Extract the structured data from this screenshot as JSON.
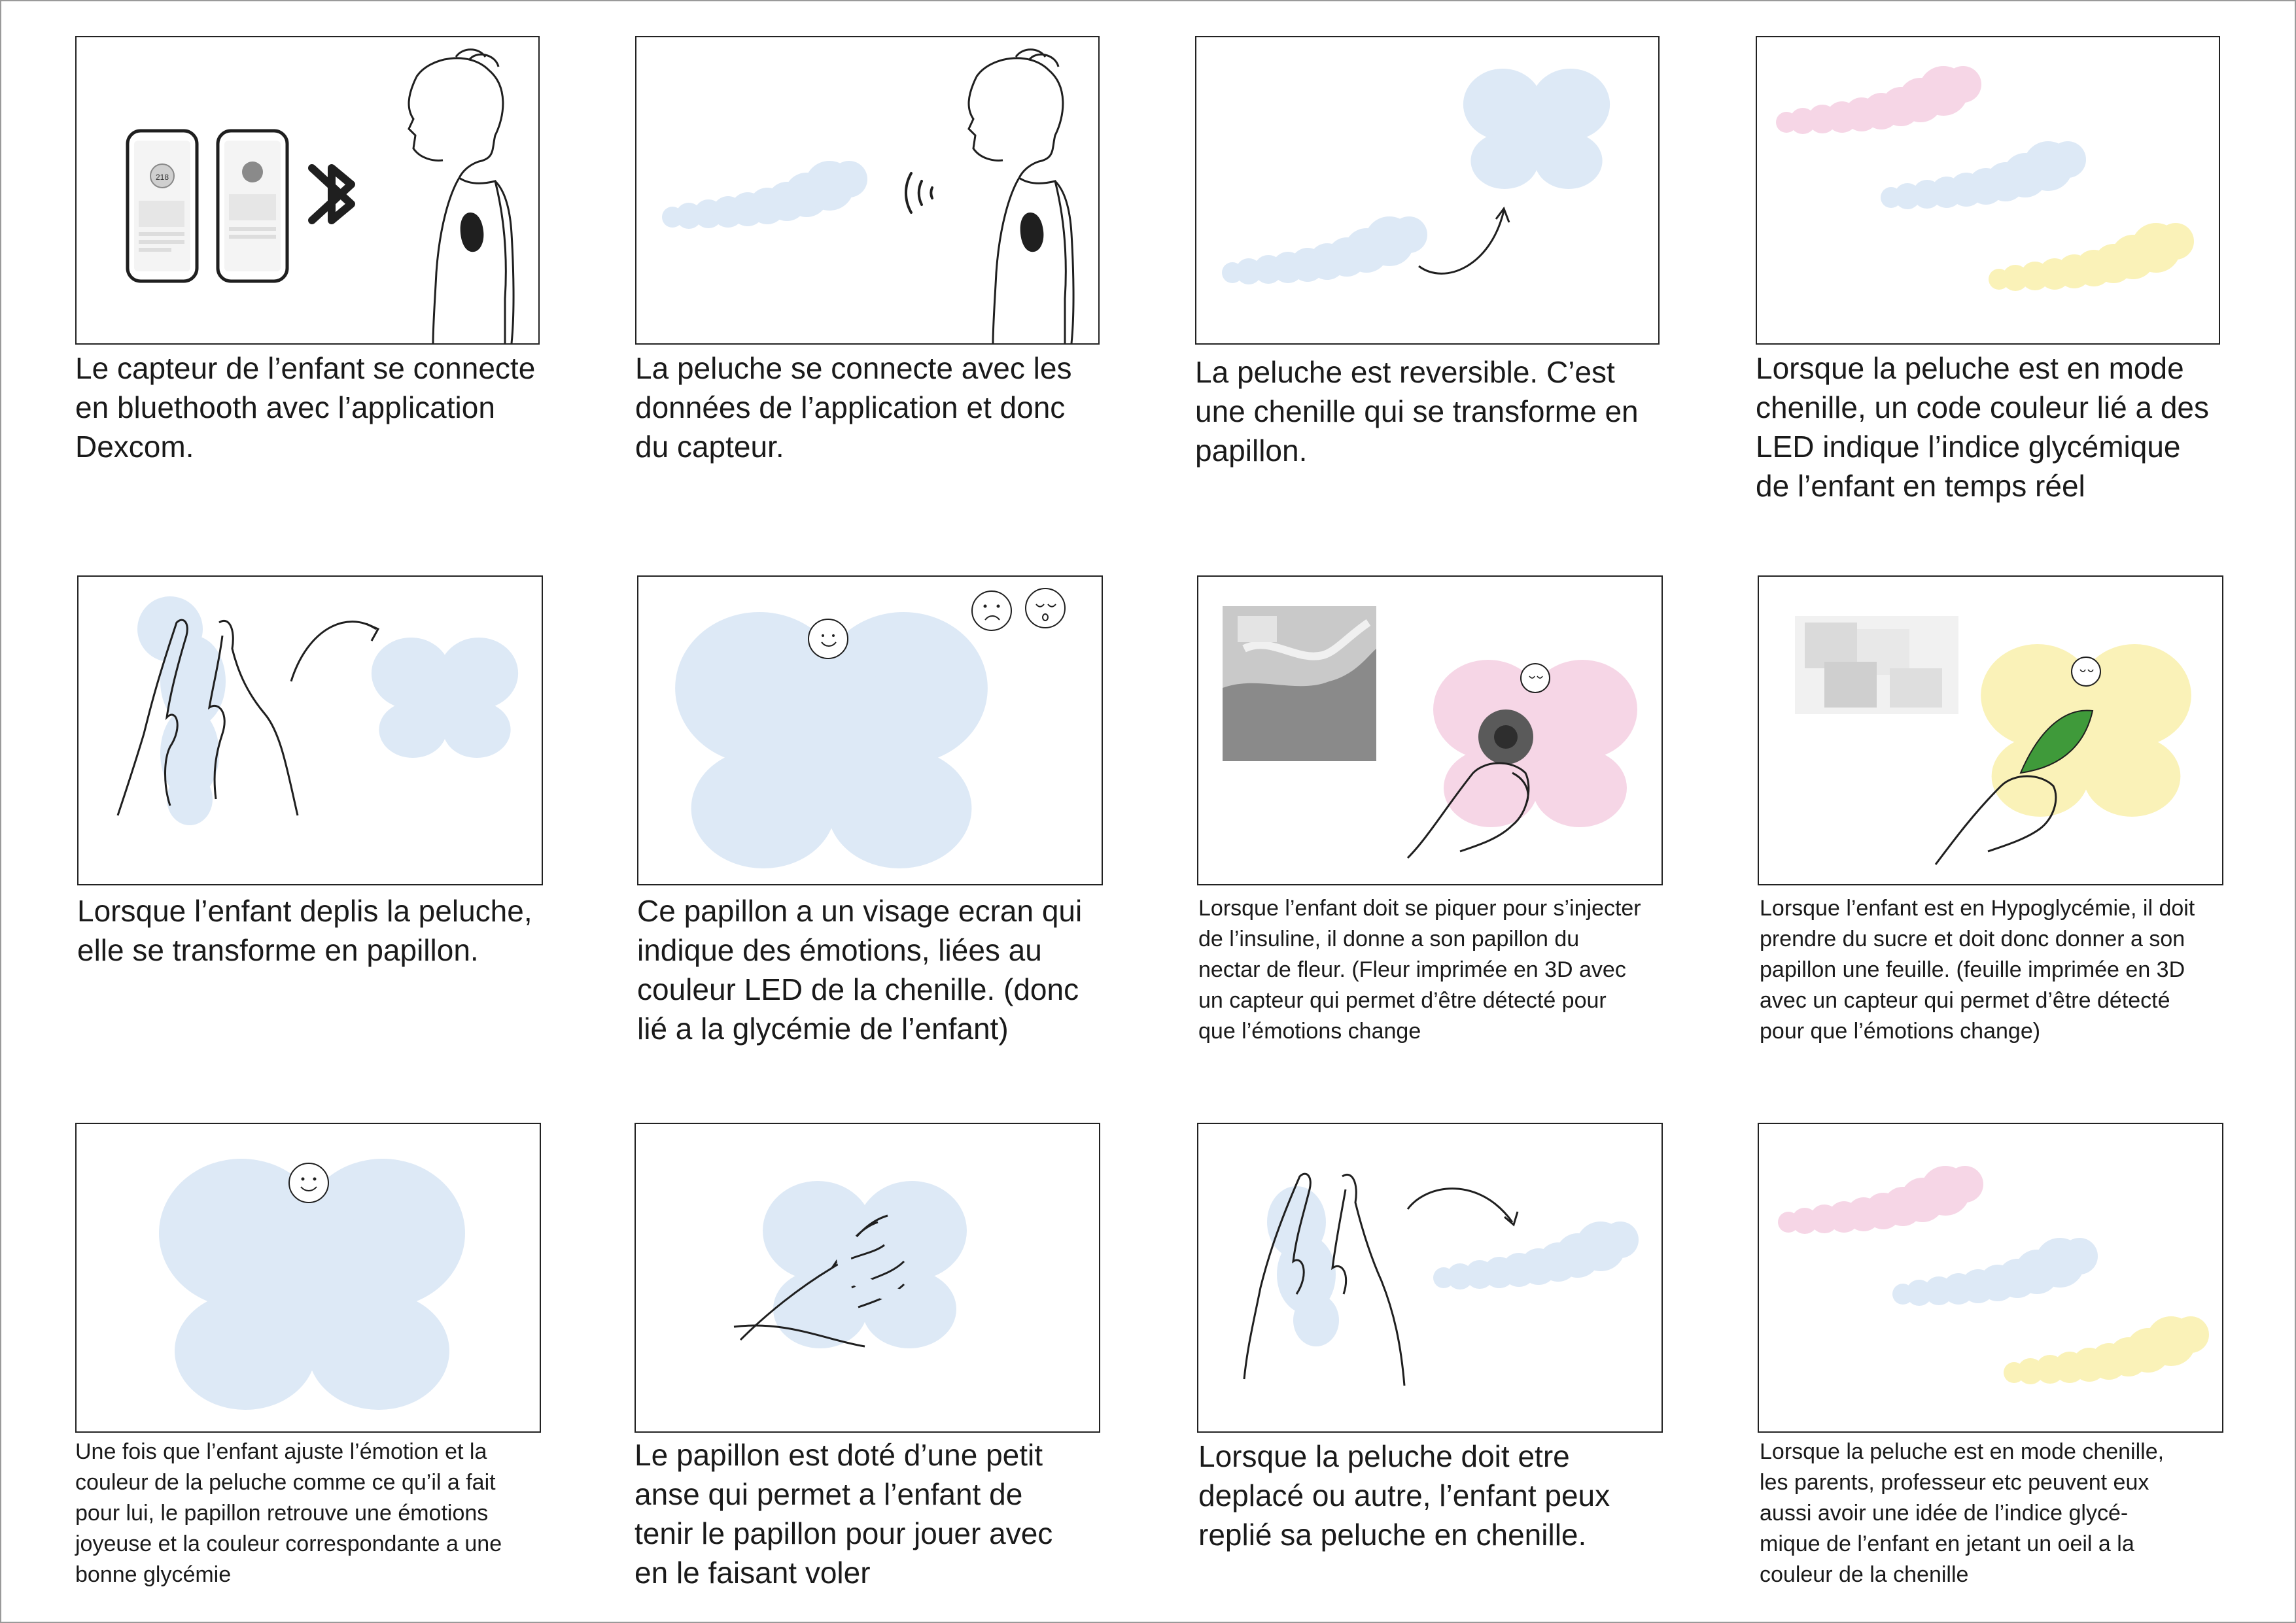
{
  "colors": {
    "blue": "#dde9f6",
    "pink": "#f6d6e6",
    "yellow": "#faf2b8",
    "line": "#1f1f1f"
  },
  "panels": [
    {
      "id": 1,
      "caption": "Le capteur de l’enfant se connecte\nen bluethooth avec l’application\nDexcom.",
      "icons": [
        "phone-app-icon",
        "bluetooth-icon",
        "child-with-sensor-illustration"
      ],
      "phone_reading": "218"
    },
    {
      "id": 2,
      "caption": "La peluche se connecte avec les\ndonnées de l’application et donc\ndu capteur.",
      "icons": [
        "caterpillar-plush",
        "signal-waves-icon",
        "child-with-sensor-illustration"
      ]
    },
    {
      "id": 3,
      "caption": "La peluche est reversible. C’est\nune chenille qui se transforme en\npapillon.",
      "icons": [
        "caterpillar-plush",
        "curved-arrow-icon",
        "butterfly-plush"
      ]
    },
    {
      "id": 4,
      "caption": "Lorsque la peluche est en mode\nchenille, un code couleur lié a des\nLED indique l’indice glycémique\nde l’enfant en temps réel",
      "icons": [
        "caterpillar-pink",
        "caterpillar-blue",
        "caterpillar-yellow"
      ]
    },
    {
      "id": 5,
      "caption": "Lorsque l’enfant deplis la peluche,\nelle se transforme en papillon.",
      "icons": [
        "hands-unfolding",
        "curved-arrow-icon",
        "butterfly-plush"
      ]
    },
    {
      "id": 6,
      "caption": "Ce papillon a un visage ecran qui\nindique des émotions, liées au\ncouleur LED de la chenille. (donc\nlié a la glycémie de l’enfant)",
      "icons": [
        "butterfly-plush",
        "sad-face-icon",
        "sleepy-face-icon"
      ]
    },
    {
      "id": 7,
      "caption": "Lorsque l’enfant doit se piquer pour s’injecter\nde l’insuline, il donne a son papillon du\nnectar de fleur. (Fleur imprimée en 3D avec\nun capteur qui permet d’être détecté pour\nque l’émotions change",
      "icons": [
        "insulin-injection-photo",
        "butterfly-pink",
        "hand-with-flower"
      ]
    },
    {
      "id": 8,
      "caption": "Lorsque l’enfant est en Hypoglycémie, il doit\nprendre du sucre et doit donc donner a son\npapillon une feuille. (feuille imprimée en 3D\navec un capteur qui permet d’être détecté\npour que l’émotions change)",
      "icons": [
        "sugar-cubes-photo",
        "butterfly-yellow",
        "hand-with-leaf"
      ]
    },
    {
      "id": 9,
      "caption": "Une fois que l’enfant ajuste l’émotion et la\ncouleur de la peluche comme ce qu’il a fait\npour lui, le papillon retrouve une émotions\njoyeuse et la couleur correspondante a une\nbonne glycémie",
      "icons": [
        "butterfly-happy"
      ]
    },
    {
      "id": 10,
      "caption": "Le papillon est doté d’une petit\nanse qui permet a l’enfant de\ntenir le papillon pour jouer avec\nen le faisant voler",
      "icons": [
        "butterfly-plush",
        "hand-holding-strap"
      ]
    },
    {
      "id": 11,
      "caption": "Lorsque la peluche doit etre\ndeplacé ou autre, l’enfant peux\nreplié sa peluche en chenille.",
      "icons": [
        "hands-folding",
        "curved-arrow-icon",
        "caterpillar-plush"
      ]
    },
    {
      "id": 12,
      "caption": "Lorsque la peluche est en mode chenille,\nles parents, professeur etc peuvent eux\naussi avoir une idée de l’indice glycé-\nmique de l’enfant en jetant un oeil a la\ncouleur de la chenille",
      "icons": [
        "caterpillar-pink",
        "caterpillar-blue",
        "caterpillar-yellow"
      ]
    }
  ]
}
